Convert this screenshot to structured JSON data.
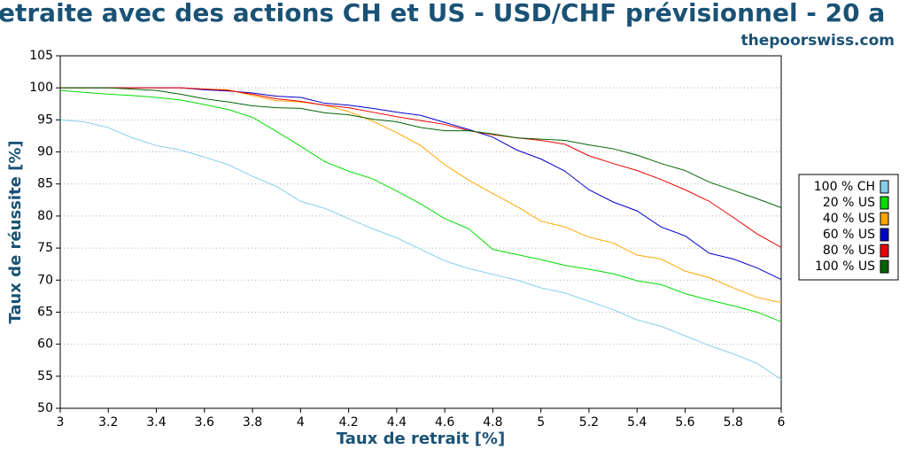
{
  "chart_data": {
    "type": "line",
    "title": "etraite avec des actions CH et US - USD/CHF prévisionnel - 20 a",
    "subtitle": "thepoorswiss.com",
    "x_label": "Taux de retrait [%]",
    "y_label": "Taux de réussite [%]",
    "x": [
      3,
      3.1,
      3.2,
      3.3,
      3.4,
      3.5,
      3.6,
      3.7,
      3.8,
      3.9,
      4,
      4.1,
      4.2,
      4.3,
      4.4,
      4.5,
      4.6,
      4.7,
      4.8,
      4.9,
      5,
      5.1,
      5.2,
      5.3,
      5.4,
      5.5,
      5.6,
      5.7,
      5.8,
      5.9,
      6
    ],
    "xlim": [
      3,
      6
    ],
    "xticks": [
      3,
      3.2,
      3.4,
      3.6,
      3.8,
      4,
      4.2,
      4.4,
      4.6,
      4.8,
      5,
      5.2,
      5.4,
      5.6,
      5.8,
      6
    ],
    "ylim": [
      50,
      105
    ],
    "yticks": [
      50,
      55,
      60,
      65,
      70,
      75,
      80,
      85,
      90,
      95,
      100,
      105
    ],
    "grid": true,
    "legend": "right",
    "series": [
      {
        "name": "100 % CH",
        "color": "#87ceeb",
        "values": [
          95,
          94.7,
          93.8,
          92.2,
          91,
          90.3,
          89.2,
          88,
          86.2,
          84.6,
          82.3,
          81.2,
          79.6,
          78,
          76.6,
          74.8,
          73,
          71.8,
          70.9,
          70,
          68.8,
          68,
          66.7,
          65.4,
          63.8,
          62.8,
          61.3,
          59.8,
          58.5,
          57,
          54.5
        ]
      },
      {
        "name": "20 % US",
        "color": "#00dd00",
        "values": [
          99.6,
          99.3,
          99,
          98.8,
          98.5,
          98.1,
          97.4,
          96.6,
          95.4,
          93.2,
          90.9,
          88.5,
          87,
          85.8,
          83.9,
          81.9,
          79.6,
          78,
          74.8,
          74,
          73.2,
          72.3,
          71.7,
          71,
          69.9,
          69.3,
          67.9,
          66.9,
          66,
          65,
          63.5
        ]
      },
      {
        "name": "40 % US",
        "color": "#ffa500",
        "values": [
          100,
          100,
          100,
          100,
          100,
          100,
          99.8,
          99.7,
          98.8,
          98,
          97.8,
          97.3,
          96.3,
          94.8,
          93,
          91,
          88,
          85.6,
          83.5,
          81.5,
          79.2,
          78.3,
          76.7,
          75.8,
          73.9,
          73.3,
          71.4,
          70.4,
          68.8,
          67.3,
          66.5
        ]
      },
      {
        "name": "60 % US",
        "color": "#0000cc",
        "values": [
          100,
          100,
          100,
          100,
          100,
          100,
          99.7,
          99.5,
          99.2,
          98.7,
          98.5,
          97.6,
          97.3,
          96.8,
          96.2,
          95.7,
          94.6,
          93.5,
          92.3,
          90.3,
          88.9,
          87,
          84.1,
          82.2,
          80.8,
          78.3,
          76.9,
          74.2,
          73.3,
          71.9,
          70.1
        ]
      },
      {
        "name": "80 % US",
        "color": "#ee0000",
        "values": [
          100,
          100,
          100,
          100,
          100,
          100,
          99.8,
          99.6,
          99,
          98.3,
          97.9,
          97.3,
          96.9,
          96.2,
          95.5,
          94.9,
          94.3,
          93.3,
          92.7,
          92.2,
          91.8,
          91.2,
          89.4,
          88.2,
          87.1,
          85.7,
          84.1,
          82.3,
          79.8,
          77.2,
          75.1
        ]
      },
      {
        "name": "100 % US",
        "color": "#006400",
        "values": [
          100,
          100,
          100,
          99.8,
          99.6,
          99,
          98.3,
          97.8,
          97.2,
          96.9,
          96.8,
          96.1,
          95.8,
          95.1,
          94.7,
          93.8,
          93.3,
          93.3,
          92.8,
          92.2,
          92,
          91.8,
          91.1,
          90.5,
          89.5,
          88.2,
          87.1,
          85.3,
          84,
          82.7,
          81.3
        ]
      }
    ]
  }
}
